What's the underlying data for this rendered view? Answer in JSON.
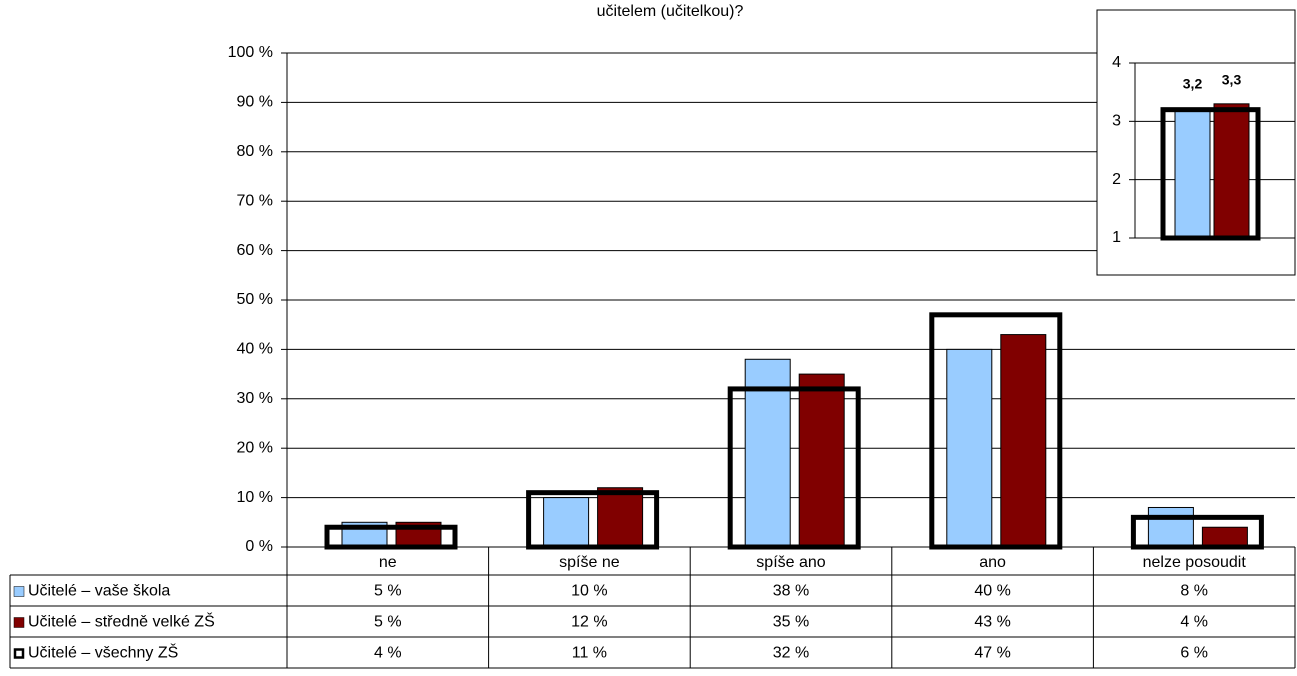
{
  "chart_data": [
    {
      "type": "bar",
      "title": "učitelem (učitelkou)?",
      "categories": [
        "ne",
        "spíše ne",
        "spíše ano",
        "ano",
        "nelze posoudit"
      ],
      "series": [
        {
          "name": "Učitelé – vaše škola",
          "color": "#99ccff",
          "values": [
            5,
            10,
            38,
            40,
            8
          ],
          "value_labels": [
            "5 %",
            "10 %",
            "38 %",
            "40 %",
            "8 %"
          ]
        },
        {
          "name": "Učitelé – středně velké ZŠ",
          "color": "#800000",
          "values": [
            5,
            12,
            35,
            43,
            4
          ],
          "value_labels": [
            "5 %",
            "12 %",
            "35 %",
            "43 %",
            "4 %"
          ]
        },
        {
          "name": "Učitelé – všechny ZŠ",
          "color": "#000000",
          "style": "outline",
          "values": [
            4,
            11,
            32,
            47,
            6
          ],
          "value_labels": [
            "4 %",
            "11 %",
            "32 %",
            "47 %",
            "6 %"
          ]
        }
      ],
      "ylim": [
        0,
        100
      ],
      "yticks": [
        {
          "value": 0,
          "label": "0 %"
        },
        {
          "value": 10,
          "label": "10 %"
        },
        {
          "value": 20,
          "label": "20 %"
        },
        {
          "value": 30,
          "label": "30 %"
        },
        {
          "value": 40,
          "label": "40 %"
        },
        {
          "value": 50,
          "label": "50 %"
        },
        {
          "value": 60,
          "label": "60 %"
        },
        {
          "value": 70,
          "label": "70 %"
        },
        {
          "value": 80,
          "label": "80 %"
        },
        {
          "value": 90,
          "label": "90 %"
        },
        {
          "value": 100,
          "label": "100 %"
        }
      ],
      "grid": true
    },
    {
      "type": "bar",
      "series": [
        {
          "color": "#99ccff",
          "values": [
            3.2
          ],
          "value_labels": [
            "3,2"
          ]
        },
        {
          "color": "#800000",
          "values": [
            3.3
          ],
          "value_labels": [
            "3,3"
          ]
        },
        {
          "color": "#000000",
          "style": "outline",
          "values": [
            3.2
          ]
        }
      ],
      "ylim": [
        1,
        4
      ],
      "yticks": [
        1,
        2,
        3,
        4
      ],
      "grid": true
    }
  ]
}
